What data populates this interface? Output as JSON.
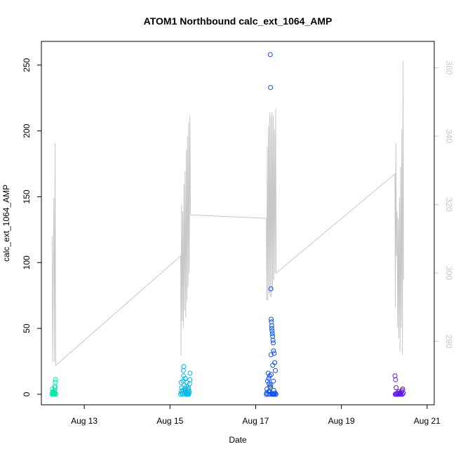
{
  "chart_data": {
    "type": "scatter",
    "title": "ATOM1 Northbound calc_ext_1064_AMP",
    "xlabel": "Date",
    "ylabel": "calc_ext_1064_AMP",
    "x_ticks": [
      "Aug 13",
      "Aug 15",
      "Aug 17",
      "Aug 19",
      "Aug 21"
    ],
    "x_tick_dates": [
      "2023-08-13",
      "2023-08-15",
      "2023-08-17",
      "2023-08-19",
      "2023-08-21"
    ],
    "xlim": [
      "2023-08-12 00:00",
      "2023-08-21 04:00"
    ],
    "ylim": [
      -8,
      268
    ],
    "y_ticks": [
      0,
      50,
      100,
      150,
      200,
      250
    ],
    "y2lim": [
      261.5,
      367.7
    ],
    "y2_ticks": [
      280,
      300,
      320,
      340,
      360
    ],
    "grid": false,
    "legend": "none",
    "colors": {
      "line_series": "#c8c8c8",
      "day_12": "#00e6a8",
      "day_15": "#00b8ec",
      "day_17": "#1050f0",
      "day_20": "#6018f0"
    },
    "line_series": {
      "axis": "right",
      "points": [
        [
          "2023-08-12 06:00",
          311
        ],
        [
          "2023-08-12 06:20",
          274
        ],
        [
          "2023-08-12 06:40",
          300
        ],
        [
          "2023-08-12 07:00",
          322
        ],
        [
          "2023-08-12 07:20",
          274
        ],
        [
          "2023-08-12 07:40",
          338
        ],
        [
          "2023-08-12 08:00",
          273
        ],
        [
          "2023-08-15 06:00",
          305
        ],
        [
          "2023-08-15 06:10",
          276
        ],
        [
          "2023-08-15 06:30",
          320
        ],
        [
          "2023-08-15 06:50",
          286
        ],
        [
          "2023-08-15 07:10",
          318
        ],
        [
          "2023-08-15 07:30",
          284
        ],
        [
          "2023-08-15 07:50",
          326
        ],
        [
          "2023-08-15 08:10",
          289
        ],
        [
          "2023-08-15 08:30",
          330
        ],
        [
          "2023-08-15 08:50",
          287
        ],
        [
          "2023-08-15 09:10",
          336
        ],
        [
          "2023-08-15 09:30",
          292
        ],
        [
          "2023-08-15 09:50",
          340
        ],
        [
          "2023-08-15 10:10",
          296
        ],
        [
          "2023-08-15 10:30",
          344
        ],
        [
          "2023-08-15 10:50",
          300
        ],
        [
          "2023-08-15 11:10",
          346
        ],
        [
          "2023-08-15 11:30",
          317
        ],
        [
          "2023-08-17 06:00",
          316
        ],
        [
          "2023-08-17 06:10",
          292
        ],
        [
          "2023-08-17 06:30",
          337
        ],
        [
          "2023-08-17 06:50",
          292
        ],
        [
          "2023-08-17 07:10",
          343
        ],
        [
          "2023-08-17 07:30",
          294
        ],
        [
          "2023-08-17 07:50",
          347
        ],
        [
          "2023-08-17 08:10",
          293
        ],
        [
          "2023-08-17 08:30",
          346
        ],
        [
          "2023-08-17 08:50",
          293
        ],
        [
          "2023-08-17 09:10",
          347
        ],
        [
          "2023-08-17 09:30",
          295
        ],
        [
          "2023-08-17 09:50",
          346
        ],
        [
          "2023-08-17 10:10",
          298
        ],
        [
          "2023-08-17 10:30",
          342
        ],
        [
          "2023-08-17 10:50",
          300
        ],
        [
          "2023-08-17 11:10",
          348
        ],
        [
          "2023-08-17 11:30",
          300
        ],
        [
          "2023-08-20 06:00",
          329
        ],
        [
          "2023-08-20 06:10",
          290
        ],
        [
          "2023-08-20 06:30",
          338
        ],
        [
          "2023-08-20 06:50",
          305
        ],
        [
          "2023-08-20 07:10",
          318
        ],
        [
          "2023-08-20 07:30",
          284
        ],
        [
          "2023-08-20 07:50",
          316
        ],
        [
          "2023-08-20 08:10",
          281
        ],
        [
          "2023-08-20 08:30",
          322
        ],
        [
          "2023-08-20 08:50",
          277
        ],
        [
          "2023-08-20 09:10",
          331
        ],
        [
          "2023-08-20 09:30",
          284
        ],
        [
          "2023-08-20 09:50",
          342
        ],
        [
          "2023-08-20 10:10",
          276
        ],
        [
          "2023-08-20 10:30",
          362
        ],
        [
          "2023-08-20 10:50",
          298
        ]
      ]
    },
    "series": [
      {
        "group": "2023-08-12",
        "color_key": "day_12",
        "x": [
          "2023-08-12 06:00",
          "2023-08-12 06:20",
          "2023-08-12 06:40",
          "2023-08-12 07:00",
          "2023-08-12 07:20",
          "2023-08-12 07:40",
          "2023-08-12 08:00",
          "2023-08-12 06:10",
          "2023-08-12 06:50",
          "2023-08-12 07:30",
          "2023-08-12 07:50",
          "2023-08-12 06:30",
          "2023-08-12 07:10",
          "2023-08-12 07:40",
          "2023-08-12 07:55",
          "2023-08-12 06:15",
          "2023-08-12 07:25"
        ],
        "y": [
          0,
          1,
          2,
          0.5,
          3,
          1,
          0,
          4,
          2,
          6,
          9,
          0.3,
          0.8,
          5,
          11,
          1.5,
          0.2
        ]
      },
      {
        "group": "2023-08-15",
        "color_key": "day_15",
        "x": [
          "2023-08-15 06:00",
          "2023-08-15 06:15",
          "2023-08-15 06:30",
          "2023-08-15 06:45",
          "2023-08-15 07:00",
          "2023-08-15 07:15",
          "2023-08-15 07:30",
          "2023-08-15 07:45",
          "2023-08-15 08:00",
          "2023-08-15 08:15",
          "2023-08-15 08:30",
          "2023-08-15 08:45",
          "2023-08-15 09:00",
          "2023-08-15 09:15",
          "2023-08-15 09:30",
          "2023-08-15 09:45",
          "2023-08-15 10:00",
          "2023-08-15 10:15",
          "2023-08-15 10:30",
          "2023-08-15 10:45",
          "2023-08-15 11:00",
          "2023-08-15 11:15",
          "2023-08-15 07:20",
          "2023-08-15 07:40",
          "2023-08-15 08:20",
          "2023-08-15 09:20",
          "2023-08-15 10:20",
          "2023-08-15 11:10",
          "2023-08-15 06:20",
          "2023-08-15 08:40",
          "2023-08-15 09:50",
          "2023-08-15 10:40"
        ],
        "y": [
          0,
          2,
          5,
          1,
          0,
          3,
          18,
          21,
          7,
          4,
          12,
          2,
          0,
          6,
          9,
          1,
          3,
          5,
          0,
          2,
          8,
          16,
          10,
          14,
          1,
          0.5,
          4,
          11,
          9,
          3,
          0,
          1
        ]
      },
      {
        "group": "2023-08-17",
        "color_key": "day_17",
        "x": [
          "2023-08-17 06:00",
          "2023-08-17 06:20",
          "2023-08-17 06:40",
          "2023-08-17 07:00",
          "2023-08-17 07:20",
          "2023-08-17 07:40",
          "2023-08-17 08:00",
          "2023-08-17 08:10",
          "2023-08-17 08:20",
          "2023-08-17 08:30",
          "2023-08-17 08:40",
          "2023-08-17 08:50",
          "2023-08-17 09:00",
          "2023-08-17 09:10",
          "2023-08-17 09:20",
          "2023-08-17 09:30",
          "2023-08-17 09:40",
          "2023-08-17 09:50",
          "2023-08-17 10:00",
          "2023-08-17 10:20",
          "2023-08-17 10:40",
          "2023-08-17 11:00",
          "2023-08-17 11:20",
          "2023-08-17 06:10",
          "2023-08-17 06:50",
          "2023-08-17 07:30",
          "2023-08-17 07:50",
          "2023-08-17 08:15",
          "2023-08-17 08:35",
          "2023-08-17 08:55",
          "2023-08-17 09:15",
          "2023-08-17 09:35",
          "2023-08-17 09:55",
          "2023-08-17 10:10",
          "2023-08-17 10:30",
          "2023-08-17 10:50",
          "2023-08-17 11:10",
          "2023-08-17 07:10",
          "2023-08-17 08:05",
          "2023-08-17 08:25",
          "2023-08-17 08:45",
          "2023-08-17 09:05",
          "2023-08-17 09:25",
          "2023-08-17 09:45",
          "2023-08-17 10:05"
        ],
        "y": [
          0,
          4,
          10,
          16,
          12,
          2,
          6,
          258,
          233,
          80,
          57,
          55,
          50,
          48,
          46,
          44,
          41,
          39,
          33,
          31,
          24,
          18,
          0,
          1,
          0,
          8,
          14,
          5,
          30,
          52,
          0,
          22,
          10,
          3,
          0,
          1,
          0,
          2,
          0,
          7,
          15,
          0.5,
          0,
          0.2,
          0
        ]
      },
      {
        "group": "2023-08-20",
        "color_key": "day_20",
        "x": [
          "2023-08-20 06:00",
          "2023-08-20 06:20",
          "2023-08-20 06:40",
          "2023-08-20 07:00",
          "2023-08-20 07:20",
          "2023-08-20 07:40",
          "2023-08-20 08:00",
          "2023-08-20 08:20",
          "2023-08-20 08:40",
          "2023-08-20 09:00",
          "2023-08-20 09:20",
          "2023-08-20 09:40",
          "2023-08-20 10:00",
          "2023-08-20 10:20",
          "2023-08-20 10:40",
          "2023-08-20 06:10",
          "2023-08-20 06:30",
          "2023-08-20 07:10",
          "2023-08-20 08:10",
          "2023-08-20 09:10",
          "2023-08-20 10:10"
        ],
        "y": [
          14,
          11,
          5,
          0,
          1,
          0,
          2,
          0,
          0.5,
          1,
          0,
          2,
          3,
          4,
          1,
          0,
          0.3,
          0.8,
          0,
          0.2,
          0
        ]
      }
    ]
  }
}
